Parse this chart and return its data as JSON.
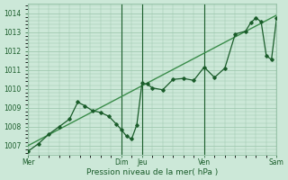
{
  "xlabel": "Pression niveau de la mer( hPa )",
  "bg_color": "#cce8d8",
  "grid_color": "#99c4aa",
  "line_color": "#1a5c2a",
  "trend_color": "#3a8c4a",
  "ylim": [
    1006.5,
    1014.5
  ],
  "xlim": [
    0,
    24
  ],
  "day_labels": [
    "Mer",
    "Dim",
    "Jeu",
    "Ven",
    "Sam"
  ],
  "day_positions": [
    0,
    9,
    11,
    17,
    24
  ],
  "yticks": [
    1007,
    1008,
    1009,
    1010,
    1011,
    1012,
    1013,
    1014
  ],
  "trend_x": [
    0,
    24
  ],
  "trend_y": [
    1007.0,
    1013.9
  ],
  "main_x": [
    0,
    1.0,
    2.0,
    3.0,
    4.0,
    4.8,
    5.5,
    6.2,
    7.0,
    7.8,
    8.5,
    9.0,
    9.5,
    10.0,
    10.5,
    11.0,
    11.5,
    12.0,
    13.0,
    14.0,
    15.0,
    16.0,
    17.0,
    18.0,
    19.0,
    20.0,
    21.0,
    21.5,
    22.0,
    22.5,
    23.0,
    23.5,
    24.0
  ],
  "main_y": [
    1006.7,
    1007.1,
    1007.6,
    1008.0,
    1008.4,
    1009.3,
    1009.1,
    1008.85,
    1008.75,
    1008.55,
    1008.15,
    1007.85,
    1007.5,
    1007.35,
    1008.1,
    1010.3,
    1010.25,
    1010.05,
    1009.95,
    1010.5,
    1010.55,
    1010.45,
    1011.15,
    1010.6,
    1011.1,
    1012.9,
    1013.05,
    1013.5,
    1013.75,
    1013.55,
    1011.75,
    1011.55,
    1013.75
  ]
}
